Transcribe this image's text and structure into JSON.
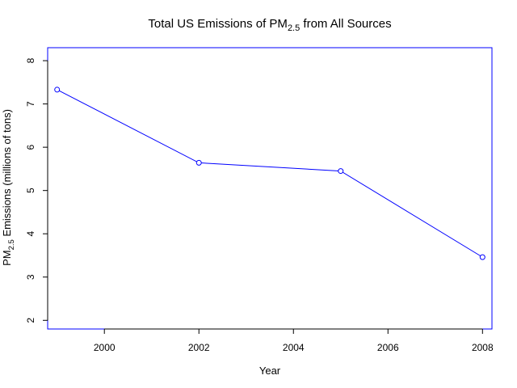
{
  "chart_data": {
    "type": "line",
    "title": "Total US Emissions of PM",
    "title_sub": "2.5",
    "title_rest": " from All Sources",
    "xlabel": "Year",
    "ylabel_prefix": "PM",
    "ylabel_sub": "2.5",
    "ylabel_rest": " Emissions (millions of tons)",
    "xlim": [
      1998.8,
      2008.2
    ],
    "ylim": [
      1.8,
      8.3
    ],
    "x_ticks": [
      2000,
      2002,
      2004,
      2006,
      2008
    ],
    "y_ticks": [
      2,
      3,
      4,
      5,
      6,
      7,
      8
    ],
    "grid": false,
    "series": [
      {
        "x": [
          1999,
          2002,
          2005,
          2008
        ],
        "values": [
          7.33,
          5.64,
          5.45,
          3.46
        ]
      }
    ],
    "colors": {
      "line": "#0000FF",
      "frame": "#0000FF",
      "axis": "#000000"
    }
  }
}
